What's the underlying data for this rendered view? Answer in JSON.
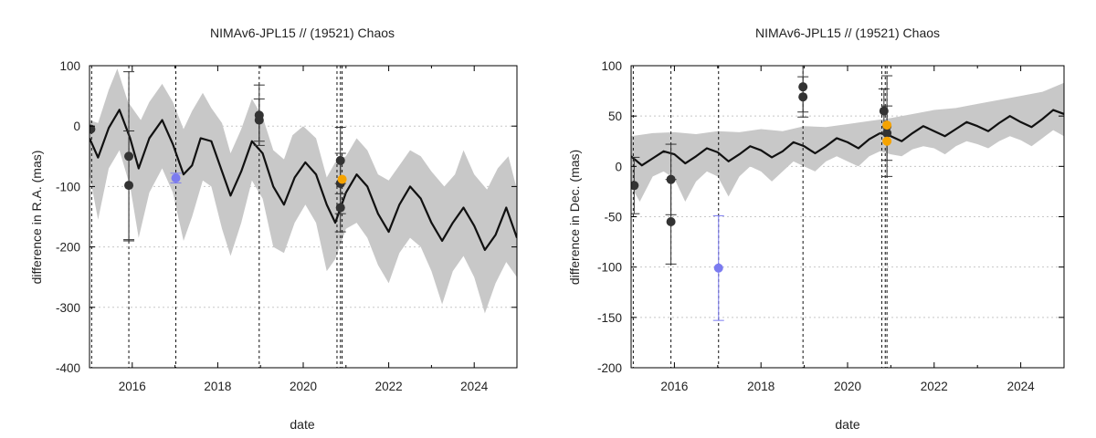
{
  "chart_data": [
    {
      "type": "line",
      "title": "NIMAv6-JPL15 // (19521) Chaos",
      "xlabel": "date",
      "ylabel": "difference in R.A. (mas)",
      "xlim": [
        2015.0,
        2025.0
      ],
      "ylim": [
        -400,
        100
      ],
      "xticks": [
        2016,
        2018,
        2020,
        2022,
        2024
      ],
      "yticks": [
        -400,
        -300,
        -200,
        -100,
        0,
        100
      ],
      "grid": true,
      "colors": {
        "model": "#111111",
        "band": "#c8c8c8",
        "obs": "#333333",
        "obs_blue": "#7b7bf0",
        "obs_orange": "#f5a300",
        "grid": "#c8c8c8"
      },
      "observation_dates": [
        2015.05,
        2015.92,
        2017.02,
        2018.97,
        2020.79,
        2020.87,
        2020.91
      ],
      "model_line": {
        "x": [
          2015.0,
          2015.2,
          2015.45,
          2015.7,
          2015.95,
          2016.15,
          2016.4,
          2016.7,
          2016.95,
          2017.2,
          2017.4,
          2017.6,
          2017.85,
          2018.1,
          2018.3,
          2018.55,
          2018.8,
          2019.05,
          2019.3,
          2019.55,
          2019.8,
          2020.05,
          2020.3,
          2020.55,
          2020.75,
          2021.0,
          2021.25,
          2021.5,
          2021.75,
          2022.0,
          2022.25,
          2022.5,
          2022.75,
          2023.0,
          2023.25,
          2023.5,
          2023.75,
          2024.0,
          2024.25,
          2024.5,
          2024.75,
          2025.0
        ],
        "y": [
          -20,
          -52,
          -3,
          27,
          -20,
          -70,
          -20,
          10,
          -30,
          -80,
          -65,
          -20,
          -25,
          -75,
          -115,
          -75,
          -25,
          -45,
          -100,
          -130,
          -85,
          -60,
          -80,
          -130,
          -160,
          -110,
          -80,
          -100,
          -145,
          -175,
          -130,
          -100,
          -120,
          -160,
          -190,
          -160,
          -135,
          -165,
          -205,
          -180,
          -135,
          -185
        ]
      },
      "band_upper": {
        "x": [
          2015.0,
          2015.2,
          2015.45,
          2015.65,
          2015.9,
          2016.2,
          2016.4,
          2016.7,
          2016.95,
          2017.2,
          2017.4,
          2017.65,
          2017.85,
          2018.1,
          2018.3,
          2018.55,
          2018.8,
          2019.05,
          2019.3,
          2019.55,
          2019.75,
          2020.0,
          2020.3,
          2020.55,
          2020.75,
          2021.0,
          2021.25,
          2021.5,
          2021.75,
          2022.0,
          2022.25,
          2022.5,
          2022.75,
          2023.0,
          2023.3,
          2023.55,
          2023.75,
          2024.0,
          2024.3,
          2024.55,
          2024.8,
          2025.0
        ],
        "y": [
          10,
          5,
          60,
          95,
          40,
          10,
          40,
          70,
          40,
          -5,
          25,
          55,
          30,
          5,
          -45,
          -5,
          45,
          15,
          -40,
          -55,
          -15,
          0,
          -20,
          -85,
          -60,
          -50,
          -20,
          -40,
          -80,
          -90,
          -65,
          -40,
          -50,
          -75,
          -100,
          -80,
          -40,
          -80,
          -105,
          -70,
          -50,
          -105
        ]
      },
      "band_lower": {
        "x": [
          2015.0,
          2015.2,
          2015.45,
          2015.7,
          2015.95,
          2016.15,
          2016.4,
          2016.7,
          2016.95,
          2017.2,
          2017.4,
          2017.65,
          2017.85,
          2018.1,
          2018.3,
          2018.55,
          2018.8,
          2019.05,
          2019.3,
          2019.55,
          2019.8,
          2020.05,
          2020.3,
          2020.55,
          2020.75,
          2021.0,
          2021.25,
          2021.5,
          2021.75,
          2022.0,
          2022.25,
          2022.5,
          2022.75,
          2023.0,
          2023.25,
          2023.5,
          2023.75,
          2024.0,
          2024.25,
          2024.5,
          2024.75,
          2025.0
        ],
        "y": [
          -80,
          -155,
          -70,
          -40,
          -100,
          -185,
          -110,
          -70,
          -110,
          -190,
          -150,
          -90,
          -100,
          -170,
          -215,
          -160,
          -90,
          -120,
          -200,
          -210,
          -160,
          -130,
          -160,
          -240,
          -220,
          -170,
          -160,
          -185,
          -230,
          -260,
          -210,
          -185,
          -200,
          -240,
          -295,
          -240,
          -215,
          -250,
          -310,
          -260,
          -225,
          -250
        ]
      },
      "points": [
        {
          "x": 2015.03,
          "y": -5,
          "yerr": 0,
          "color": "obs"
        },
        {
          "x": 2015.92,
          "y": -50,
          "yerr": 140,
          "color": "obs"
        },
        {
          "x": 2015.92,
          "y": -98,
          "yerr": 90,
          "color": "obs"
        },
        {
          "x": 2017.02,
          "y": -86,
          "yerr": 8,
          "color": "obs_blue"
        },
        {
          "x": 2018.97,
          "y": 18,
          "yerr": 50,
          "color": "obs"
        },
        {
          "x": 2018.97,
          "y": 10,
          "yerr": 35,
          "color": "obs"
        },
        {
          "x": 2020.87,
          "y": -57,
          "yerr": 55,
          "color": "obs"
        },
        {
          "x": 2020.87,
          "y": -95,
          "yerr": 50,
          "color": "obs"
        },
        {
          "x": 2020.87,
          "y": -135,
          "yerr": 40,
          "color": "obs"
        },
        {
          "x": 2020.91,
          "y": -88,
          "yerr": 0,
          "color": "obs_orange"
        }
      ]
    },
    {
      "type": "line",
      "title": "NIMAv6-JPL15 // (19521) Chaos",
      "xlabel": "date",
      "ylabel": "difference in Dec. (mas)",
      "xlim": [
        2015.0,
        2025.0
      ],
      "ylim": [
        -200,
        100
      ],
      "xticks": [
        2016,
        2018,
        2020,
        2022,
        2024
      ],
      "yticks": [
        -200,
        -150,
        -100,
        -50,
        0,
        50,
        100
      ],
      "grid": true,
      "colors": {
        "model": "#111111",
        "band": "#c8c8c8",
        "obs": "#333333",
        "obs_blue": "#7b7bf0",
        "obs_orange": "#f5a300",
        "grid": "#c8c8c8"
      },
      "observation_dates": [
        2015.05,
        2015.92,
        2017.02,
        2018.97,
        2020.79,
        2020.87,
        2020.91
      ],
      "model_line": {
        "x": [
          2015.0,
          2015.25,
          2015.5,
          2015.75,
          2016.0,
          2016.25,
          2016.5,
          2016.75,
          2017.0,
          2017.25,
          2017.5,
          2017.75,
          2018.0,
          2018.25,
          2018.5,
          2018.75,
          2019.0,
          2019.25,
          2019.5,
          2019.75,
          2020.0,
          2020.25,
          2020.5,
          2020.75,
          2021.0,
          2021.25,
          2021.5,
          2021.75,
          2022.0,
          2022.25,
          2022.5,
          2022.75,
          2023.0,
          2023.25,
          2023.5,
          2023.75,
          2024.0,
          2024.25,
          2024.5,
          2024.75,
          2025.0
        ],
        "y": [
          10,
          1,
          8,
          15,
          12,
          3,
          10,
          18,
          14,
          5,
          12,
          20,
          16,
          9,
          15,
          24,
          20,
          13,
          20,
          28,
          24,
          18,
          27,
          33,
          30,
          25,
          33,
          40,
          35,
          30,
          37,
          44,
          40,
          35,
          43,
          50,
          44,
          39,
          47,
          56,
          52
        ]
      },
      "band_upper": {
        "x": [
          2015.0,
          2015.5,
          2016.0,
          2016.5,
          2017.0,
          2017.5,
          2018.0,
          2018.5,
          2019.0,
          2019.5,
          2020.0,
          2020.5,
          2021.0,
          2021.5,
          2022.0,
          2022.5,
          2023.0,
          2023.5,
          2024.0,
          2024.5,
          2025.0
        ],
        "y": [
          30,
          33,
          34,
          32,
          35,
          34,
          37,
          35,
          40,
          39,
          42,
          45,
          48,
          52,
          56,
          58,
          62,
          66,
          70,
          74,
          83
        ]
      },
      "band_lower": {
        "x": [
          2015.0,
          2015.2,
          2015.5,
          2015.75,
          2016.0,
          2016.25,
          2016.5,
          2016.75,
          2017.0,
          2017.25,
          2017.5,
          2017.75,
          2018.0,
          2018.25,
          2018.5,
          2018.75,
          2019.0,
          2019.25,
          2019.5,
          2019.75,
          2020.0,
          2020.25,
          2020.5,
          2020.75,
          2021.0,
          2021.25,
          2021.5,
          2021.75,
          2022.0,
          2022.25,
          2022.5,
          2022.75,
          2023.0,
          2023.25,
          2023.5,
          2023.75,
          2024.0,
          2024.25,
          2024.5,
          2024.75,
          2025.0
        ],
        "y": [
          -20,
          -35,
          -10,
          -5,
          -12,
          -35,
          -15,
          -5,
          -10,
          -30,
          -10,
          0,
          -5,
          -15,
          -5,
          5,
          0,
          -5,
          5,
          10,
          5,
          0,
          10,
          15,
          12,
          10,
          17,
          20,
          18,
          12,
          20,
          25,
          22,
          18,
          25,
          30,
          26,
          20,
          28,
          36,
          30
        ]
      },
      "points": [
        {
          "x": 2015.07,
          "y": -19,
          "yerr": 28,
          "color": "obs"
        },
        {
          "x": 2015.92,
          "y": -13,
          "yerr": 35,
          "color": "obs"
        },
        {
          "x": 2015.92,
          "y": -55,
          "yerr": 42,
          "color": "obs"
        },
        {
          "x": 2017.02,
          "y": -101,
          "yerr": 52,
          "color": "obs_blue"
        },
        {
          "x": 2018.97,
          "y": 79,
          "yerr": 25,
          "color": "obs"
        },
        {
          "x": 2018.97,
          "y": 69,
          "yerr": 20,
          "color": "obs"
        },
        {
          "x": 2020.84,
          "y": 55,
          "yerr": 22,
          "color": "obs"
        },
        {
          "x": 2020.91,
          "y": 40,
          "yerr": 50,
          "color": "obs"
        },
        {
          "x": 2020.91,
          "y": 33,
          "yerr": 27,
          "color": "obs"
        },
        {
          "x": 2020.91,
          "y": 41,
          "yerr": 0,
          "color": "obs_orange"
        },
        {
          "x": 2020.91,
          "y": 25,
          "yerr": 0,
          "color": "obs_orange"
        }
      ]
    }
  ]
}
